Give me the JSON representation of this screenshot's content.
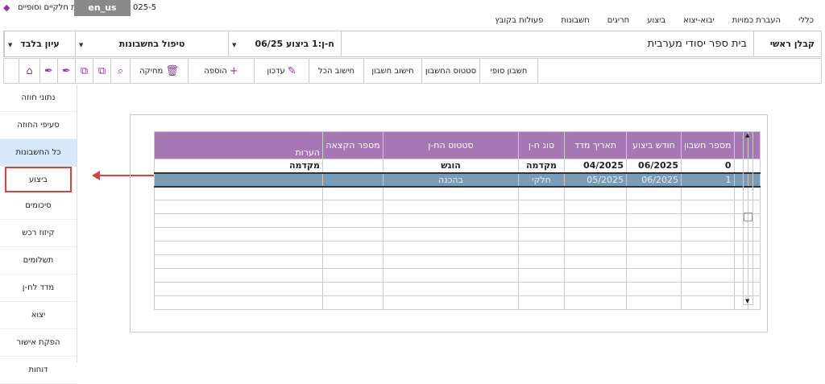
{
  "window": {
    "title": "ת חלקיים וסופיים",
    "lang": "en_us",
    "version": "025-5",
    "controls": [
      "-",
      "□",
      "x"
    ]
  },
  "menu": [
    "פעולות בקובץ",
    "חשבונות",
    "חריגים",
    "ביצוע",
    "יבוא-יצוא",
    "העברת כמויות",
    "כללי"
  ],
  "header": {
    "role": "קבלן ראשי",
    "project": "בית ספר יסודי מערבית",
    "account": "ח-ן:1 ביצוע 06/25",
    "mode": "טיפול בחשבונות",
    "view": "עיון בלבד"
  },
  "toolbar": {
    "final": "חשבון סופי",
    "status": "סטטוס החשבון",
    "calc": "חישוב חשבון",
    "calc_all": "חישוב הכל",
    "update": "עדכון",
    "add": "הוספה",
    "delete": "מחיקה"
  },
  "sidebar": [
    {
      "label": "נתוני חוזה"
    },
    {
      "label": "סעיפי החוזה"
    },
    {
      "label": "כל החשבונות",
      "active": true
    },
    {
      "label": "ביצוע",
      "highlighted": true
    },
    {
      "label": "סיכומים"
    },
    {
      "label": "קיזוז רכש"
    },
    {
      "label": "תשלומים"
    },
    {
      "label": "מדד לח-ן"
    },
    {
      "label": "יצוא"
    },
    {
      "label": "הפקת אישור"
    },
    {
      "label": "דוחות"
    }
  ],
  "table": {
    "headers": {
      "number": "מספר חשבון",
      "month": "חודש ביצוע",
      "index_date": "תאריך מדד",
      "type": "סוג ח-ן",
      "status": "סטטוס הח-ן",
      "allocation": "מספר הקצאה",
      "notes": "הערות"
    },
    "rows": [
      {
        "number": "0",
        "month": "06/2025",
        "index_date": "04/2025",
        "type": "מקדמה",
        "status": "הוגש",
        "allocation": "",
        "notes": "מקדמה"
      },
      {
        "number": "1",
        "month": "06/2025",
        "index_date": "05/2025",
        "type": "חלקי",
        "status": "בהכנה",
        "allocation": "",
        "notes": ""
      }
    ]
  },
  "colors": {
    "header_bg": "#a577b3",
    "selected_row": "#7a9db5",
    "annotation": "#d9423f"
  }
}
